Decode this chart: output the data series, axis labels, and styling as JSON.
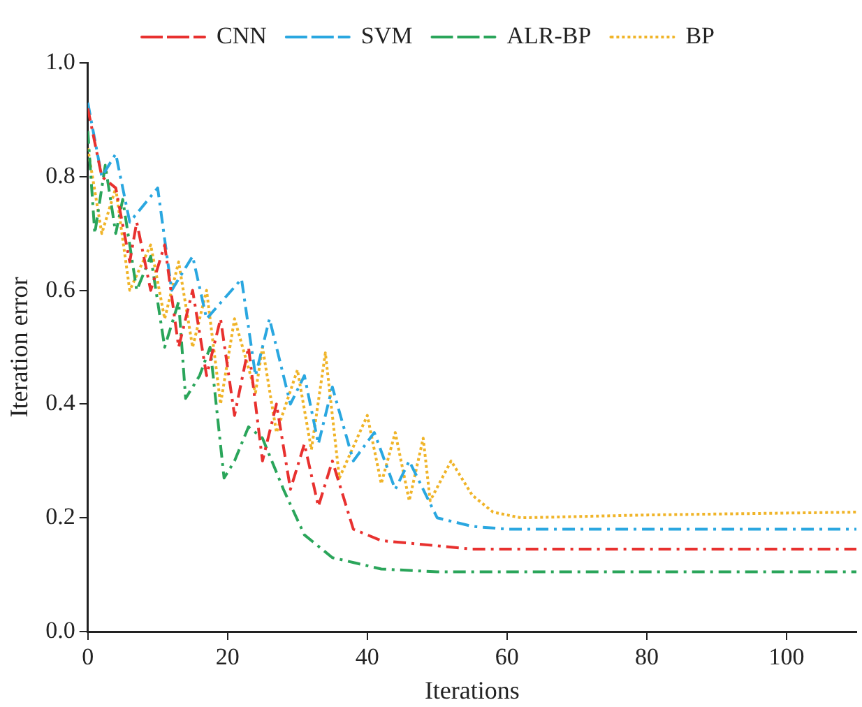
{
  "chart_data": {
    "type": "line",
    "xlabel": "Iterations",
    "ylabel": "Iteration error",
    "xlim": [
      0,
      110
    ],
    "xticks": [
      0,
      20,
      40,
      60,
      80,
      100
    ],
    "ylim": [
      0,
      1
    ],
    "yticks": [
      {
        "value": 0,
        "label": "0.0"
      },
      {
        "value": 0.2,
        "label": "0.2"
      },
      {
        "value": 0.4,
        "label": "0.4"
      },
      {
        "value": 0.6,
        "label": "0.6"
      },
      {
        "value": 0.8,
        "label": "0.8"
      },
      {
        "value": 1,
        "label": "1.0"
      }
    ],
    "grid": false,
    "legend": "top",
    "marker": "none",
    "series": [
      {
        "name": "CNN",
        "color": "#e8312f",
        "line_style": "dashed",
        "x": [
          0,
          2,
          4,
          6,
          7,
          9,
          11,
          13,
          15,
          17,
          19,
          21,
          23,
          25,
          27,
          29,
          31,
          33,
          35,
          38,
          42,
          55,
          110
        ],
        "values": [
          0.92,
          0.8,
          0.78,
          0.65,
          0.72,
          0.6,
          0.68,
          0.5,
          0.6,
          0.45,
          0.55,
          0.38,
          0.5,
          0.3,
          0.4,
          0.25,
          0.33,
          0.22,
          0.3,
          0.18,
          0.16,
          0.145,
          0.145
        ]
      },
      {
        "name": "SVM",
        "color": "#2aa7e0",
        "line_style": "dashed",
        "x": [
          0,
          2,
          4,
          6,
          10,
          12,
          15,
          17,
          22,
          24,
          26,
          29,
          31,
          33,
          35,
          38,
          41,
          44,
          46,
          50,
          55,
          60,
          110
        ],
        "values": [
          0.93,
          0.8,
          0.84,
          0.72,
          0.78,
          0.6,
          0.66,
          0.55,
          0.62,
          0.45,
          0.55,
          0.4,
          0.45,
          0.33,
          0.43,
          0.3,
          0.35,
          0.25,
          0.3,
          0.2,
          0.185,
          0.18,
          0.18
        ]
      },
      {
        "name": "ALR-BP",
        "color": "#2aa55a",
        "line_style": "dashed",
        "x": [
          0,
          1,
          2.5,
          4,
          5,
          7,
          9,
          11,
          13,
          14,
          16,
          17.5,
          19.5,
          21,
          23,
          25,
          28,
          31,
          35,
          42,
          50,
          110
        ],
        "values": [
          0.88,
          0.7,
          0.82,
          0.7,
          0.76,
          0.6,
          0.66,
          0.5,
          0.58,
          0.41,
          0.45,
          0.5,
          0.27,
          0.3,
          0.36,
          0.34,
          0.25,
          0.17,
          0.13,
          0.11,
          0.105,
          0.105
        ]
      },
      {
        "name": "BP",
        "color": "#f0b428",
        "line_style": "dotted",
        "x": [
          0,
          2,
          4,
          6,
          9,
          11,
          13,
          15,
          17,
          19,
          21,
          24,
          25,
          27,
          30,
          32,
          34,
          36,
          40,
          42,
          44,
          46,
          48,
          49,
          52,
          55,
          58,
          62,
          80,
          110
        ],
        "values": [
          0.85,
          0.7,
          0.78,
          0.6,
          0.68,
          0.55,
          0.65,
          0.5,
          0.6,
          0.4,
          0.55,
          0.42,
          0.5,
          0.35,
          0.46,
          0.32,
          0.49,
          0.27,
          0.38,
          0.26,
          0.35,
          0.23,
          0.34,
          0.23,
          0.3,
          0.24,
          0.21,
          0.2,
          0.205,
          0.21
        ]
      }
    ]
  }
}
